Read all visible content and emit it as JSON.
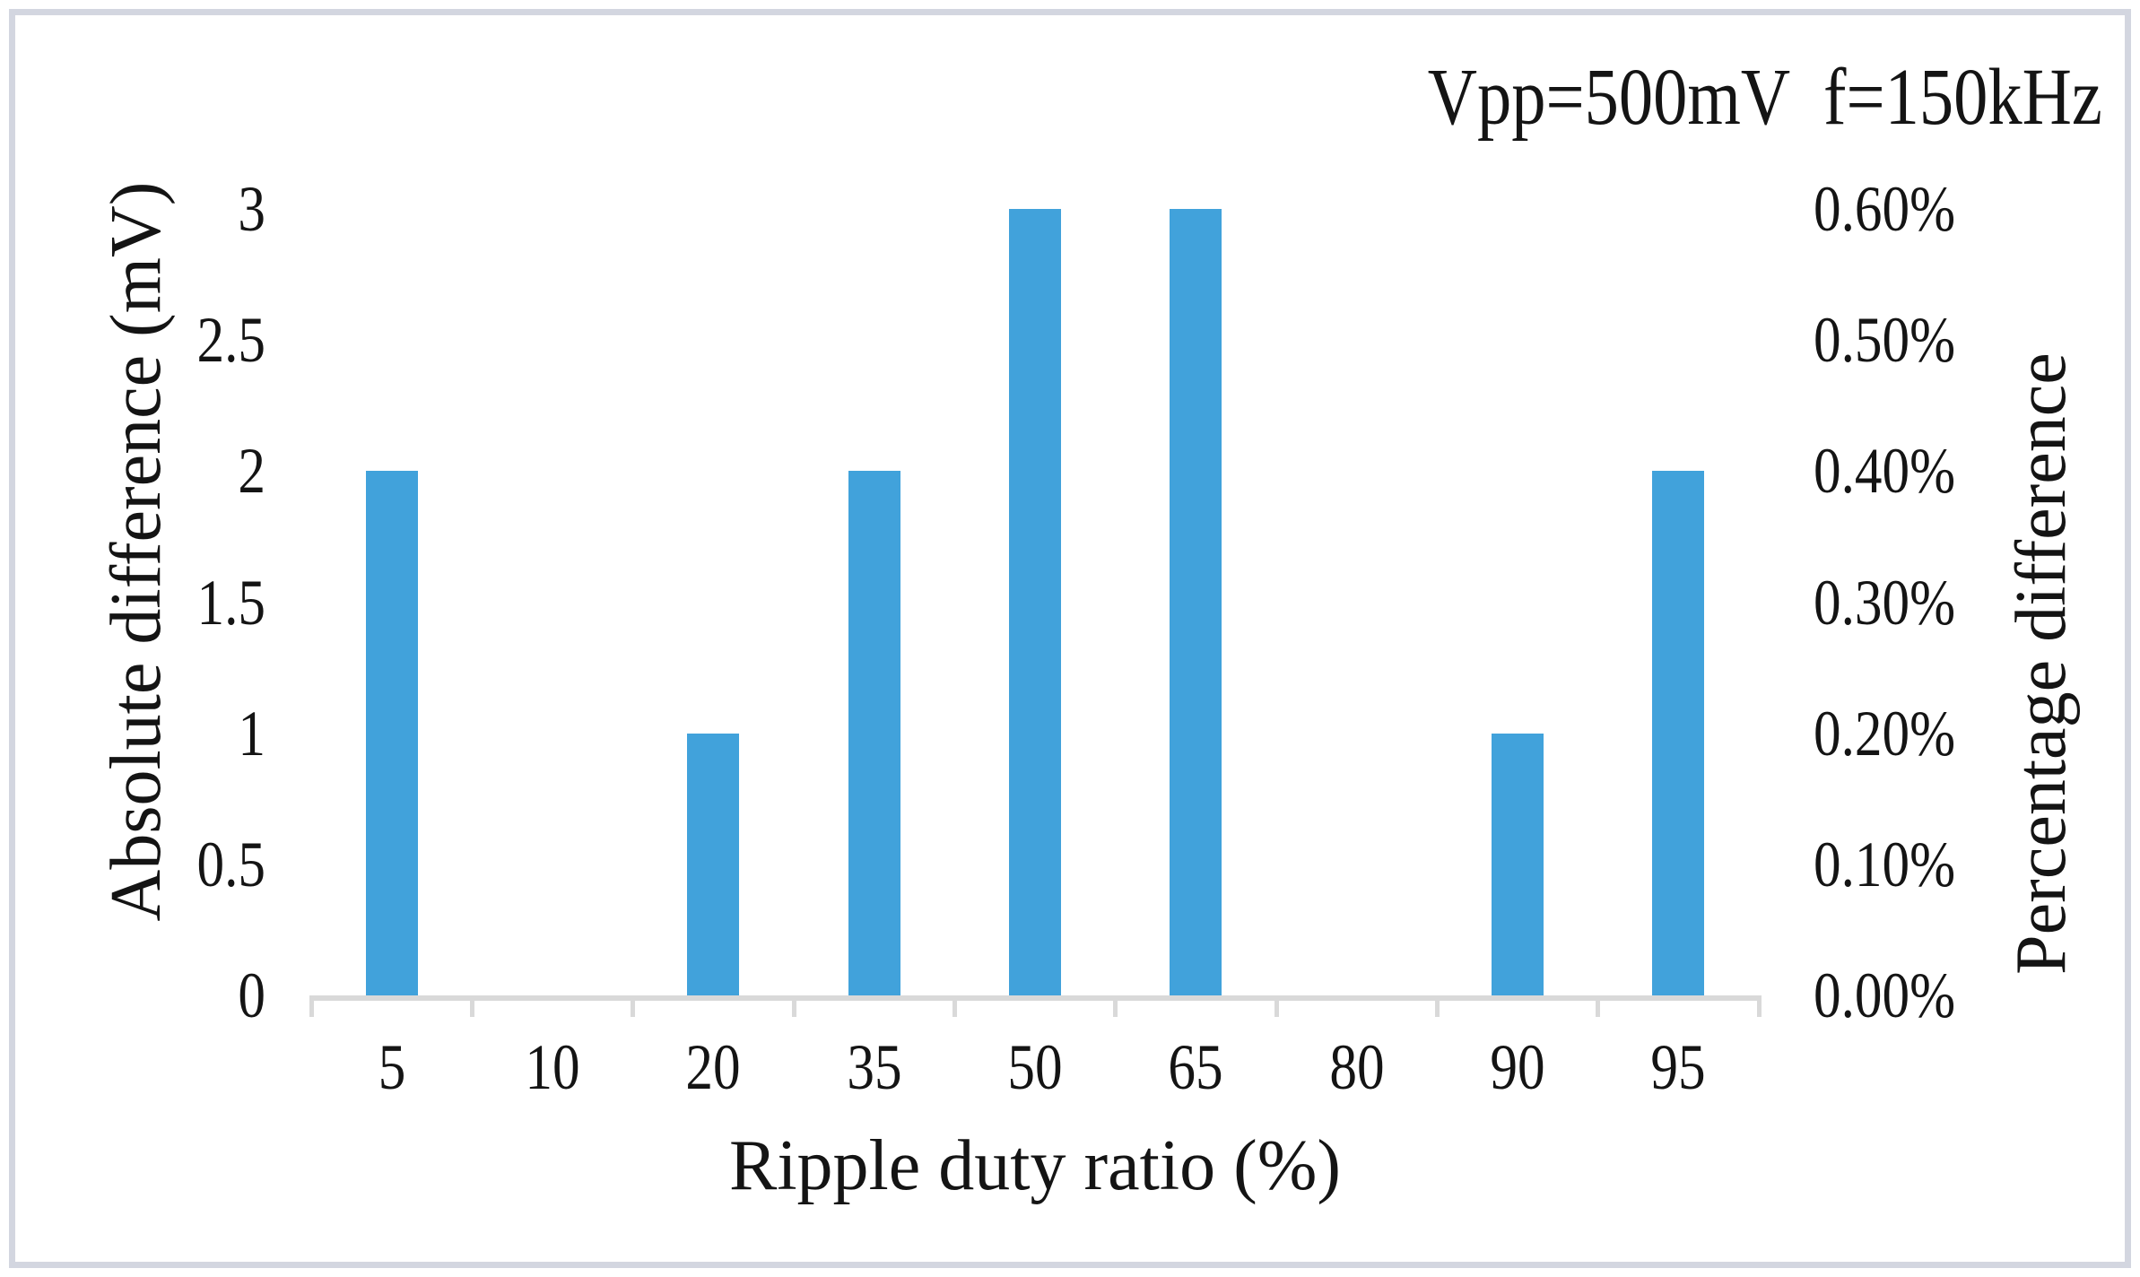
{
  "chart": {
    "annotation": "Vpp=500mV  f=150kHz",
    "x_axis": {
      "title": "Ripple duty ratio (%)"
    },
    "left_axis": {
      "title": "Absolute difference (mV)",
      "tick_labels": [
        "3",
        "2.5",
        "2",
        "1.5",
        "1",
        "0.5",
        "0"
      ]
    },
    "right_axis": {
      "title": "Percentage difference",
      "tick_labels": [
        "0.60%",
        "0.50%",
        "0.40%",
        "0.30%",
        "0.20%",
        "0.10%",
        "0.00%"
      ]
    },
    "colors": {
      "bar": "#41a2db",
      "axis": "#d9d9d9",
      "border": "#d3d6e0",
      "text": "#141414"
    }
  },
  "chart_data": {
    "type": "bar",
    "title": "Vpp=500mV  f=150kHz",
    "categories": [
      "5",
      "10",
      "20",
      "35",
      "50",
      "65",
      "80",
      "90",
      "95"
    ],
    "series": [
      {
        "name": "Absolute difference (mV)",
        "axis": "left",
        "values": [
          2,
          0,
          1,
          2,
          3,
          3,
          0,
          1,
          2
        ]
      },
      {
        "name": "Percentage difference",
        "axis": "right",
        "values_percent": [
          0.4,
          0.0,
          0.2,
          0.4,
          0.6,
          0.6,
          0.0,
          0.2,
          0.4
        ]
      }
    ],
    "xlabel": "Ripple duty ratio (%)",
    "ylabel_left": "Absolute difference (mV)",
    "ylabel_right": "Percentage difference",
    "ylim_left": [
      0,
      3
    ],
    "ylim_right_percent": [
      0.0,
      0.6
    ],
    "left_tick_step": 0.5,
    "right_tick_step_percent": 0.1,
    "grid": false,
    "legend": "none",
    "bar_color": "#41a2db"
  }
}
